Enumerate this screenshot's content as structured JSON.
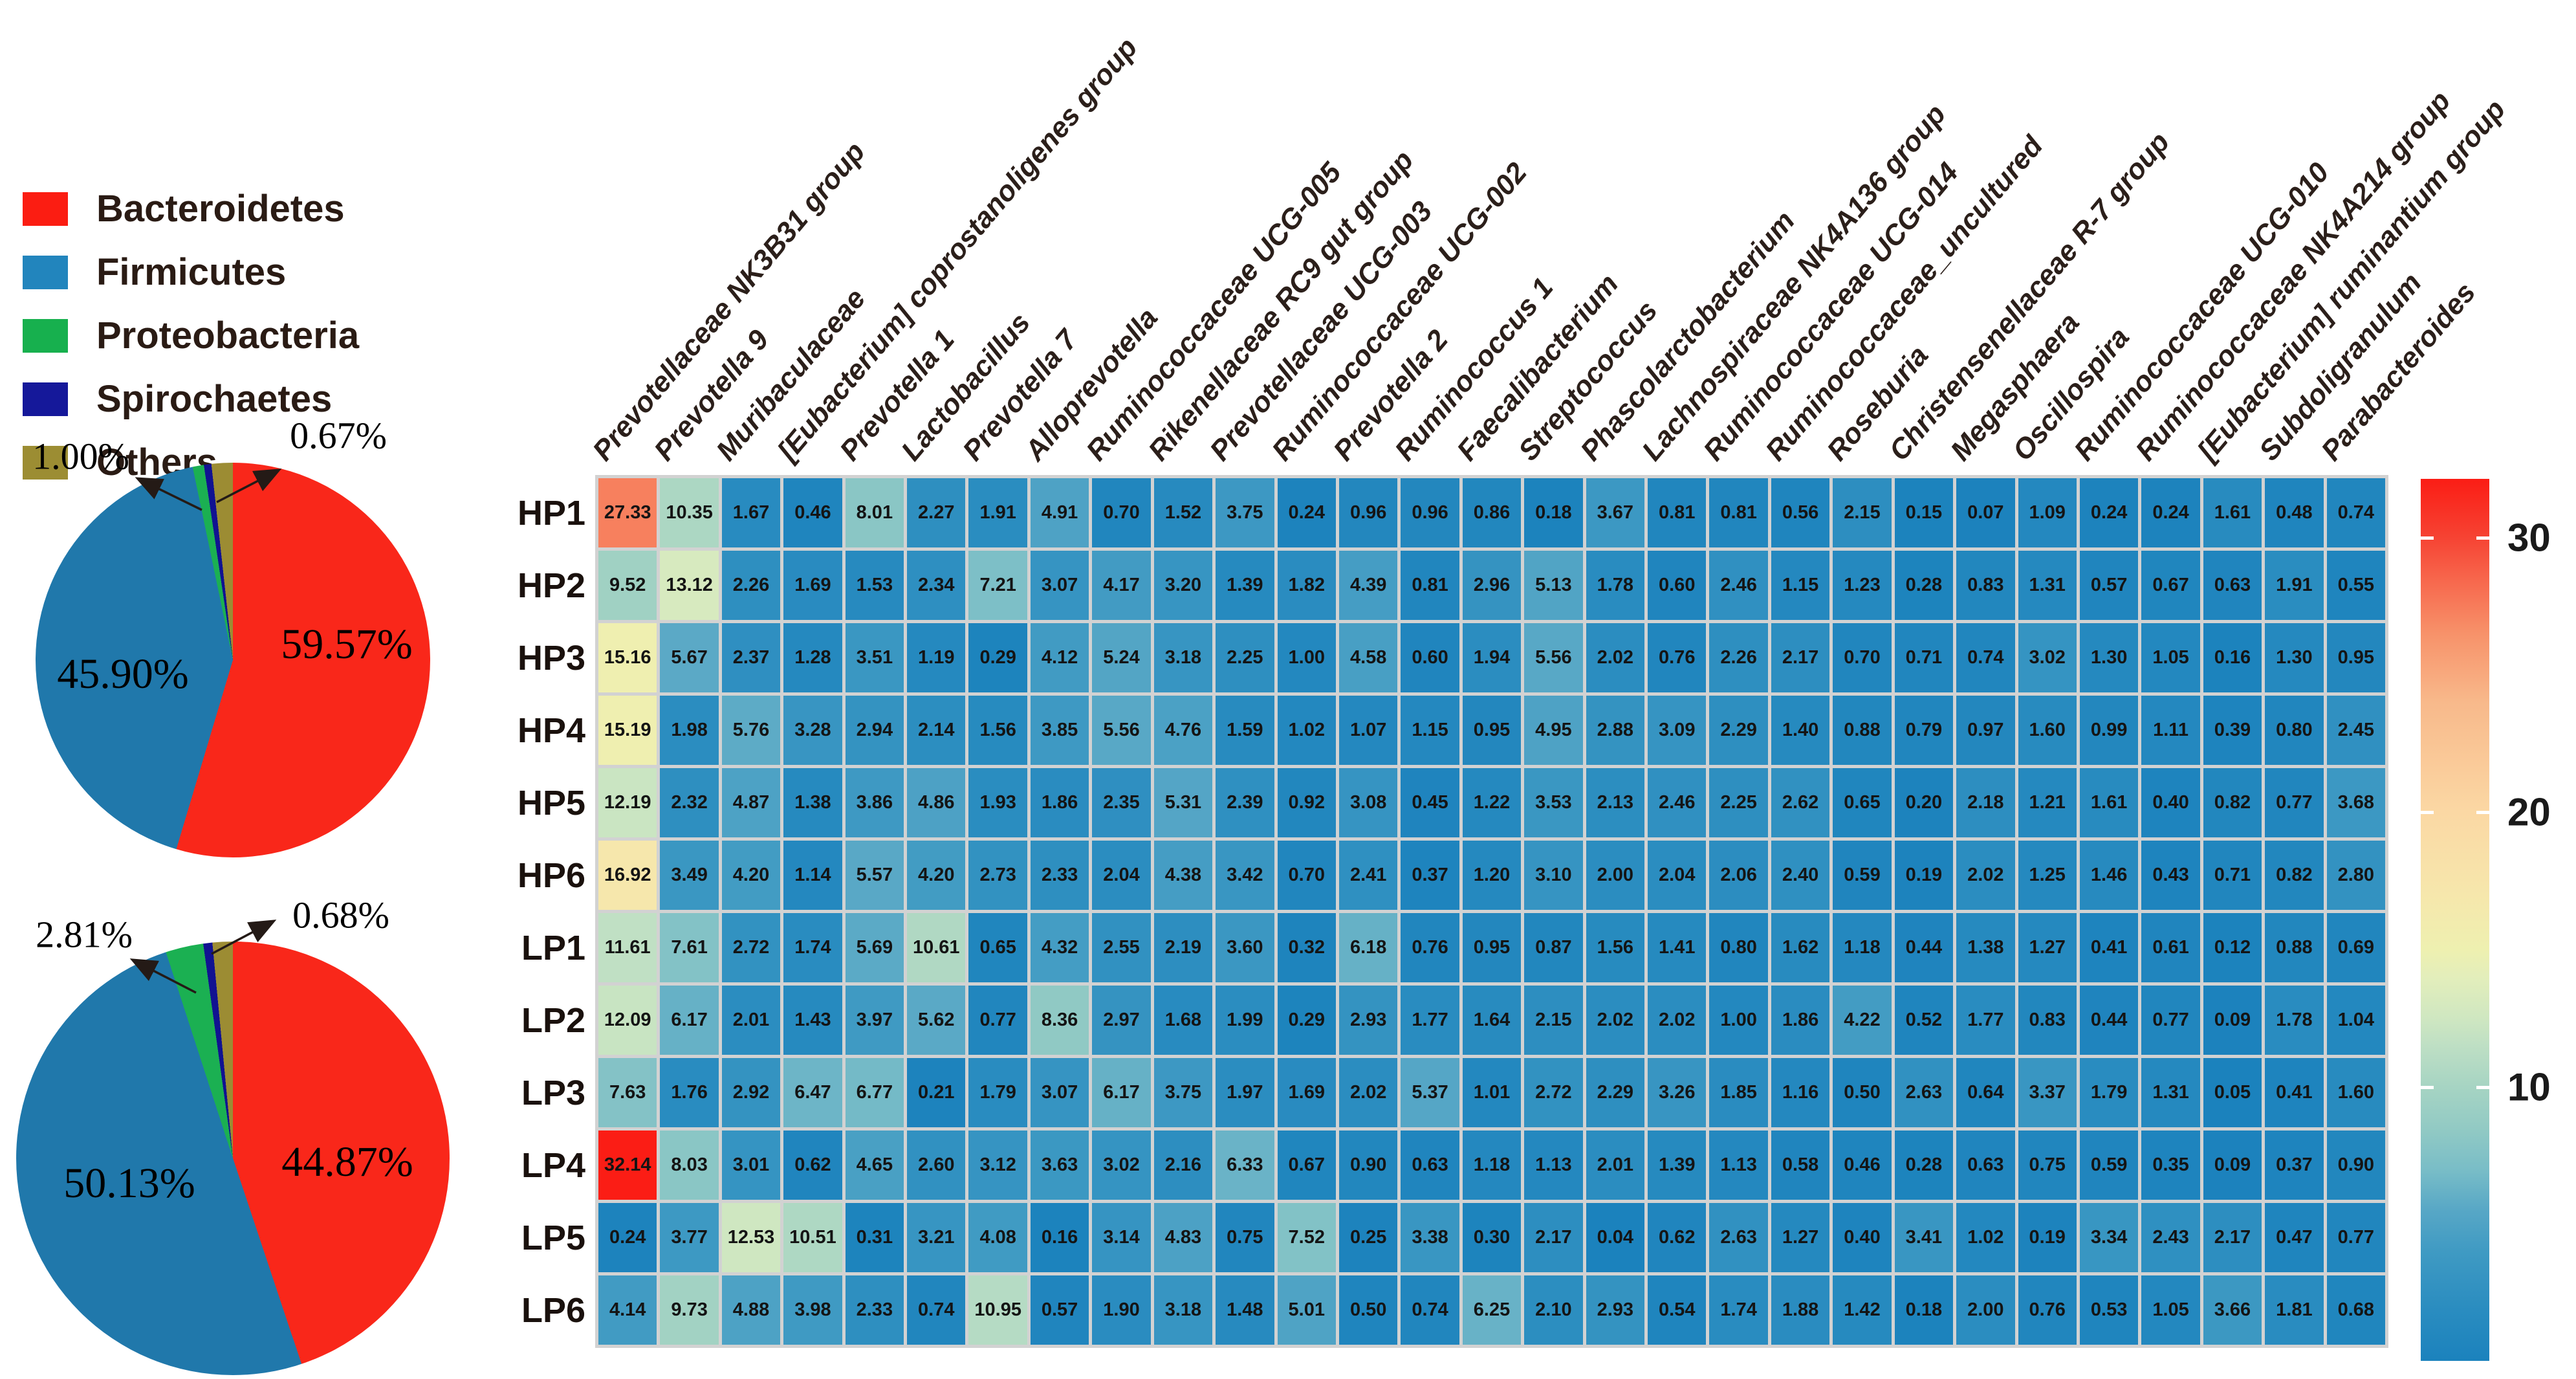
{
  "legend": {
    "items": [
      {
        "label": "Bacteroidetes",
        "color": "#fb1d12"
      },
      {
        "label": "Firmicutes",
        "color": "#2285bd"
      },
      {
        "label": "Proteobacteria",
        "color": "#17b04e"
      },
      {
        "label": "Spirochaetes",
        "color": "#15189a"
      },
      {
        "label": "Others",
        "color": "#9c8d33"
      }
    ]
  },
  "chart_data": [
    {
      "type": "pie",
      "id": "pie_top",
      "slices": [
        {
          "phylum": "Bacteroidetes",
          "pct_label": "59.57%",
          "value": 59.57,
          "color": "#f9271a"
        },
        {
          "phylum": "Firmicutes",
          "pct_label": "45.90%",
          "value": 45.9,
          "color": "#2078ab"
        },
        {
          "phylum": "Proteobacteria",
          "pct_label": "1.00%",
          "value": 1.0,
          "color": "#1bb052"
        },
        {
          "phylum": "Spirochaetes",
          "pct_label": "0.67%",
          "value": 0.67,
          "color": "#111291"
        },
        {
          "phylum": "Others",
          "pct_label": "",
          "value": 1.9,
          "color": "#9c8c33"
        }
      ]
    },
    {
      "type": "pie",
      "id": "pie_bottom",
      "slices": [
        {
          "phylum": "Bacteroidetes",
          "pct_label": "44.87%",
          "value": 44.87,
          "color": "#f9271a"
        },
        {
          "phylum": "Firmicutes",
          "pct_label": "50.13%",
          "value": 50.13,
          "color": "#2078ab"
        },
        {
          "phylum": "Proteobacteria",
          "pct_label": "2.81%",
          "value": 2.81,
          "color": "#1bb052"
        },
        {
          "phylum": "Spirochaetes",
          "pct_label": "0.68%",
          "value": 0.68,
          "color": "#111291"
        },
        {
          "phylum": "Others",
          "pct_label": "",
          "value": 1.51,
          "color": "#9c8c33"
        }
      ]
    },
    {
      "type": "heatmap",
      "id": "genus_heatmap",
      "rows": [
        "HP1",
        "HP2",
        "HP3",
        "HP4",
        "HP5",
        "HP6",
        "LP1",
        "LP2",
        "LP3",
        "LP4",
        "LP5",
        "LP6"
      ],
      "columns": [
        "Prevotellaceae NK3B31 group",
        "Prevotella 9",
        "Muribaculaceae",
        "[Eubacterium] coprostanoligenes group",
        "Prevotella 1",
        "Lactobacillus",
        "Prevotella 7",
        "Alloprevotella",
        "Ruminococcaceae UCG-005",
        "Rikenellaceae RC9 gut group",
        "Prevotellaceae UCG-003",
        "Ruminococcaceae UCG-002",
        "Prevotella 2",
        "Ruminococcus 1",
        "Faecalibacterium",
        "Streptococcus",
        "Phascolarctobacterium",
        "Lachnospiraceae NK4A136 group",
        "Ruminococcaceae UCG-014",
        "Ruminococcaceae_uncultured",
        "Roseburia",
        "Christensenellaceae R-7 group",
        "Megasphaera",
        "Oscillospira",
        "Ruminococcaceae UCG-010",
        "Ruminococcaceae NK4A214 group",
        "[Eubacterium] ruminantium group",
        "Subdoligranulum",
        "Parabacteroides"
      ],
      "values": [
        [
          27.33,
          10.35,
          1.67,
          0.46,
          8.01,
          2.27,
          1.91,
          4.91,
          0.7,
          1.52,
          3.75,
          0.24,
          0.96,
          0.96,
          0.86,
          0.18,
          3.67,
          0.81,
          0.81,
          0.56,
          2.15,
          0.15,
          0.07,
          1.09,
          0.24,
          0.24,
          1.61,
          0.48,
          0.74
        ],
        [
          9.52,
          13.12,
          2.26,
          1.69,
          1.53,
          2.34,
          7.21,
          3.07,
          4.17,
          3.2,
          1.39,
          1.82,
          4.39,
          0.81,
          2.96,
          5.13,
          1.78,
          0.6,
          2.46,
          1.15,
          1.23,
          0.28,
          0.83,
          1.31,
          0.57,
          0.67,
          0.63,
          1.91,
          0.55
        ],
        [
          15.16,
          5.67,
          2.37,
          1.28,
          3.51,
          1.19,
          0.29,
          4.12,
          5.24,
          3.18,
          2.25,
          1.0,
          4.58,
          0.6,
          1.94,
          5.56,
          2.02,
          0.76,
          2.26,
          2.17,
          0.7,
          0.71,
          0.74,
          3.02,
          1.3,
          1.05,
          0.16,
          1.3,
          0.95
        ],
        [
          15.19,
          1.98,
          5.76,
          3.28,
          2.94,
          2.14,
          1.56,
          3.85,
          5.56,
          4.76,
          1.59,
          1.02,
          1.07,
          1.15,
          0.95,
          4.95,
          2.88,
          3.09,
          2.29,
          1.4,
          0.88,
          0.79,
          0.97,
          1.6,
          0.99,
          1.11,
          0.39,
          0.8,
          2.45
        ],
        [
          12.19,
          2.32,
          4.87,
          1.38,
          3.86,
          4.86,
          1.93,
          1.86,
          2.35,
          5.31,
          2.39,
          0.92,
          3.08,
          0.45,
          1.22,
          3.53,
          2.13,
          2.46,
          2.25,
          2.62,
          0.65,
          0.2,
          2.18,
          1.21,
          1.61,
          0.4,
          0.82,
          0.77,
          3.68
        ],
        [
          16.92,
          3.49,
          4.2,
          1.14,
          5.57,
          4.2,
          2.73,
          2.33,
          2.04,
          4.38,
          3.42,
          0.7,
          2.41,
          0.37,
          1.2,
          3.1,
          2.0,
          2.04,
          2.06,
          2.4,
          0.59,
          0.19,
          2.02,
          1.25,
          1.46,
          0.43,
          0.71,
          0.82,
          2.8
        ],
        [
          11.61,
          7.61,
          2.72,
          1.74,
          5.69,
          10.61,
          0.65,
          4.32,
          2.55,
          2.19,
          3.6,
          0.32,
          6.18,
          0.76,
          0.95,
          0.87,
          1.56,
          1.41,
          0.8,
          1.62,
          1.18,
          0.44,
          1.38,
          1.27,
          0.41,
          0.61,
          0.12,
          0.88,
          0.69
        ],
        [
          12.09,
          6.17,
          2.01,
          1.43,
          3.97,
          5.62,
          0.77,
          8.36,
          2.97,
          1.68,
          1.99,
          0.29,
          2.93,
          1.77,
          1.64,
          2.15,
          2.02,
          2.02,
          1.0,
          1.86,
          4.22,
          0.52,
          1.77,
          0.83,
          0.44,
          0.77,
          0.09,
          1.78,
          1.04
        ],
        [
          7.63,
          1.76,
          2.92,
          6.47,
          6.77,
          0.21,
          1.79,
          3.07,
          6.17,
          3.75,
          1.97,
          1.69,
          2.02,
          5.37,
          1.01,
          2.72,
          2.29,
          3.26,
          1.85,
          1.16,
          0.5,
          2.63,
          0.64,
          3.37,
          1.79,
          1.31,
          0.05,
          0.41,
          1.6
        ],
        [
          32.14,
          8.03,
          3.01,
          0.62,
          4.65,
          2.6,
          3.12,
          3.63,
          3.02,
          2.16,
          6.33,
          0.67,
          0.9,
          0.63,
          1.18,
          1.13,
          2.01,
          1.39,
          1.13,
          0.58,
          0.46,
          0.28,
          0.63,
          0.75,
          0.59,
          0.35,
          0.09,
          0.37,
          0.9
        ],
        [
          0.24,
          3.77,
          12.53,
          10.51,
          0.31,
          3.21,
          4.08,
          0.16,
          3.14,
          4.83,
          0.75,
          7.52,
          0.25,
          3.38,
          0.3,
          2.17,
          0.04,
          0.62,
          2.63,
          1.27,
          0.4,
          3.41,
          1.02,
          0.19,
          3.34,
          2.43,
          2.17,
          0.47,
          0.77
        ],
        [
          4.14,
          9.73,
          4.88,
          3.98,
          2.33,
          0.74,
          10.95,
          0.57,
          1.9,
          3.18,
          1.48,
          5.01,
          0.5,
          0.74,
          6.25,
          2.1,
          2.93,
          0.54,
          1.74,
          1.88,
          1.42,
          0.18,
          2.0,
          0.76,
          0.53,
          1.05,
          3.66,
          1.81,
          0.68
        ]
      ],
      "colorbar": {
        "tick_labels": [
          "30",
          "20",
          "10"
        ],
        "tick_values": [
          30,
          20,
          10
        ],
        "domain": [
          0.04,
          32.14
        ],
        "colormap": [
          [
            0.0,
            "#1b82bd"
          ],
          [
            2.0,
            "#2b8dc0"
          ],
          [
            4.0,
            "#3f9ac3"
          ],
          [
            5.5,
            "#57a7c6"
          ],
          [
            7.0,
            "#79bdc7"
          ],
          [
            8.5,
            "#92cac4"
          ],
          [
            10.0,
            "#a6d4c3"
          ],
          [
            11.5,
            "#bedfc4"
          ],
          [
            12.5,
            "#cfe7c1"
          ],
          [
            14.0,
            "#e3eebb"
          ],
          [
            15.0,
            "#eef0b0"
          ],
          [
            17.0,
            "#f6e7ac"
          ],
          [
            20.0,
            "#fbd8a4"
          ],
          [
            24.0,
            "#f8b98b"
          ],
          [
            26.5,
            "#f7926a"
          ],
          [
            28.5,
            "#f7664c"
          ],
          [
            30.0,
            "#f64333"
          ],
          [
            32.14,
            "#fb1d15"
          ]
        ]
      }
    }
  ]
}
